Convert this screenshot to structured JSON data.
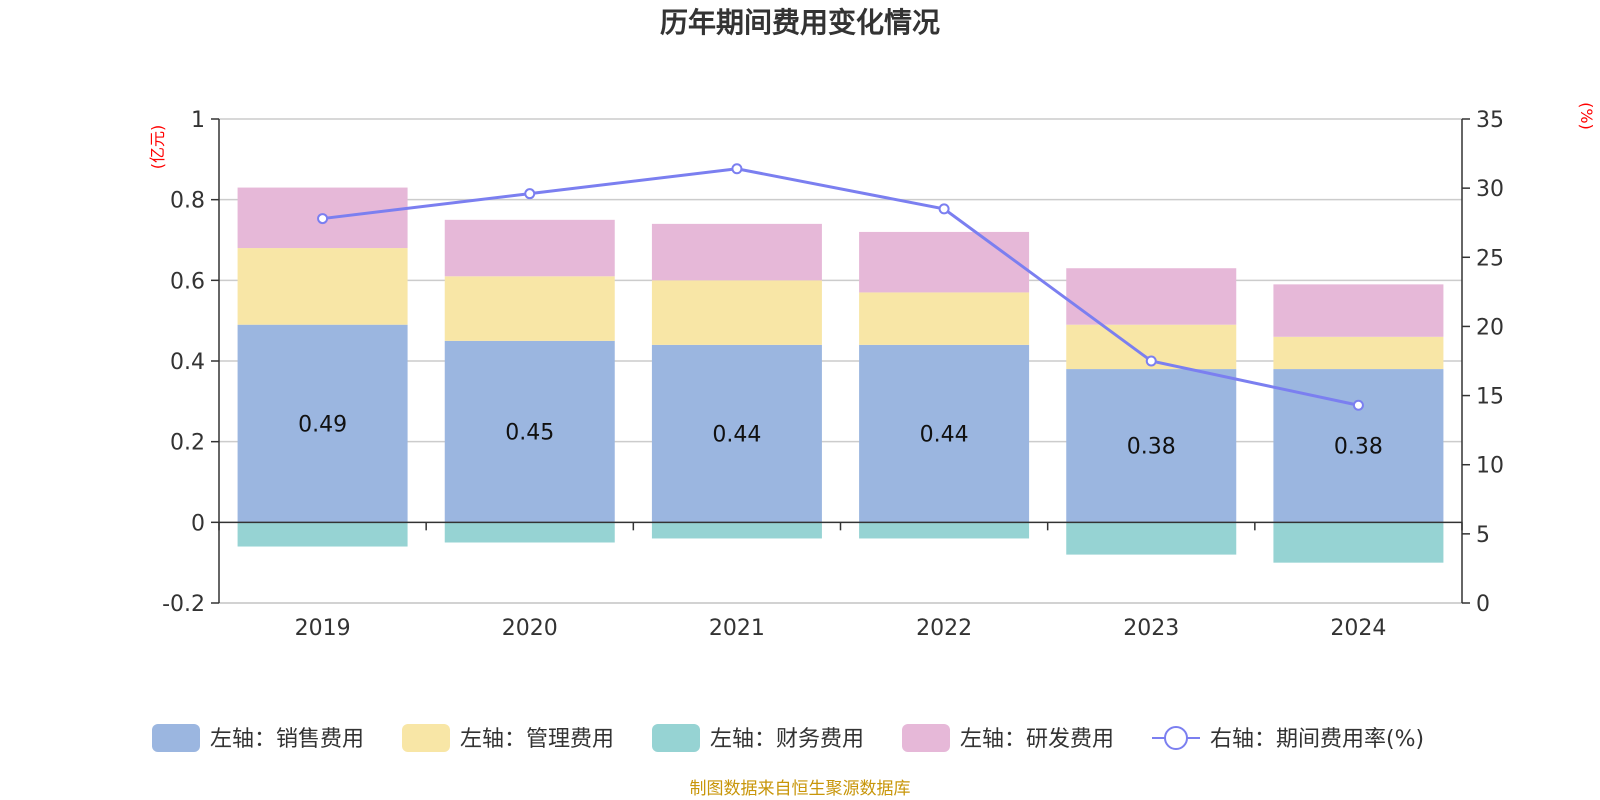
{
  "title": "历年期间费用变化情况",
  "source": "制图数据来自恒生聚源数据库",
  "colors": {
    "sales": "#9bb6e0",
    "admin": "#f8e6a6",
    "finance": "#96d3d3",
    "rd": "#e6b8d8",
    "rate": "#7b7ff0",
    "source": "#c8960a",
    "unit": "#ff0000"
  },
  "chart_data": {
    "type": "bar",
    "stacked": true,
    "title": "历年期间费用变化情况",
    "categories": [
      "2019",
      "2020",
      "2021",
      "2022",
      "2023",
      "2024"
    ],
    "left_axis": {
      "unit": "(亿元)",
      "range": [
        -0.2,
        1
      ],
      "ticks": [
        -0.2,
        0,
        0.2,
        0.4,
        0.6,
        0.8,
        1
      ],
      "tick_labels": [
        "-0.2",
        "0",
        "0.2",
        "0.4",
        "0.6",
        "0.8",
        "1"
      ]
    },
    "right_axis": {
      "unit": "(%)",
      "range": [
        0,
        35
      ],
      "ticks": [
        0,
        5,
        10,
        15,
        20,
        25,
        30,
        35
      ],
      "tick_labels": [
        "0",
        "5",
        "10",
        "15",
        "20",
        "25",
        "30",
        "35"
      ]
    },
    "series": [
      {
        "name": "左轴：销售费用",
        "key": "sales",
        "axis": "left",
        "kind": "bar",
        "values": [
          0.49,
          0.45,
          0.44,
          0.44,
          0.38,
          0.38
        ],
        "labels": [
          "0.49",
          "0.45",
          "0.44",
          "0.44",
          "0.38",
          "0.38"
        ]
      },
      {
        "name": "左轴：管理费用",
        "key": "admin",
        "axis": "left",
        "kind": "bar",
        "values": [
          0.19,
          0.16,
          0.16,
          0.13,
          0.11,
          0.08
        ]
      },
      {
        "name": "左轴：财务费用",
        "key": "finance",
        "axis": "left",
        "kind": "bar",
        "values": [
          -0.06,
          -0.05,
          -0.04,
          -0.04,
          -0.08,
          -0.1
        ]
      },
      {
        "name": "左轴：研发费用",
        "key": "rd",
        "axis": "left",
        "kind": "bar",
        "values": [
          0.15,
          0.14,
          0.14,
          0.15,
          0.14,
          0.13
        ]
      },
      {
        "name": "右轴：期间费用率(%)",
        "key": "rate",
        "axis": "right",
        "kind": "line",
        "values": [
          27.8,
          29.6,
          31.4,
          28.5,
          17.5,
          14.3
        ]
      }
    ],
    "legend_position": "bottom",
    "grid": true
  }
}
